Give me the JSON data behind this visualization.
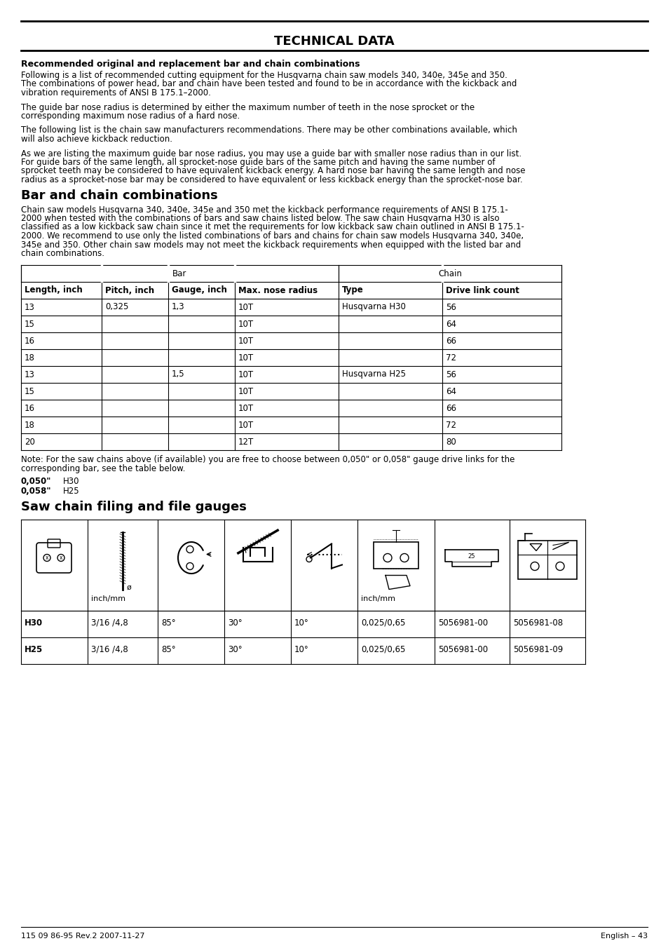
{
  "title": "TECHNICAL DATA",
  "section1_heading": "Recommended original and replacement bar and chain combinations",
  "section1_para1": "Following is a list of recommended cutting equipment for the Husqvarna chain saw models 340, 340e, 345e and 350.\nThe combinations of power head, bar and chain have been tested and found to be in accordance with the kickback and\nvibration requirements of ANSI B 175.1–2000.",
  "section1_para2": "The guide bar nose radius is determined by either the maximum number of teeth in the nose sprocket or the\ncorresponding maximum nose radius of a hard nose.",
  "section1_para3": "The following list is the chain saw manufacturers recommendations. There may be other combinations available, which\nwill also achieve kickback reduction.",
  "section1_para4": "As we are listing the maximum guide bar nose radius, you may use a guide bar with smaller nose radius than in our list.\nFor guide bars of the same length, all sprocket-nose guide bars of the same pitch and having the same number of\nsprocket teeth may be considered to have equivalent kickback energy. A hard nose bar having the same length and nose\nradius as a sprocket-nose bar may be considered to have equivalent or less kickback energy than the sprocket-nose bar.",
  "section2_heading": "Bar and chain combinations",
  "section2_paragraph": "Chain saw models Husqvarna 340, 340e, 345e and 350 met the kickback performance requirements of ANSI B 175.1-\n2000 when tested with the combinations of bars and saw chains listed below. The saw chain Husqvarna H30 is also\nclassified as a low kickback saw chain since it met the requirements for low kickback saw chain outlined in ANSI B 175.1-\n2000. We recommend to use only the listed combinations of bars and chains for chain saw models Husqvarna 340, 340e,\n345e and 350. Other chain saw models may not meet the kickback requirements when equipped with the listed bar and\nchain combinations.",
  "table1_header_row2": [
    "Length, inch",
    "Pitch, inch",
    "Gauge, inch",
    "Max. nose radius",
    "Type",
    "Drive link count"
  ],
  "table1_data": [
    [
      "13",
      "0,325",
      "1,3",
      "10T",
      "Husqvarna H30",
      "56"
    ],
    [
      "15",
      "",
      "",
      "10T",
      "",
      "64"
    ],
    [
      "16",
      "",
      "",
      "10T",
      "",
      "66"
    ],
    [
      "18",
      "",
      "",
      "10T",
      "",
      "72"
    ],
    [
      "13",
      "",
      "1,5",
      "10T",
      "Husqvarna H25",
      "56"
    ],
    [
      "15",
      "",
      "",
      "10T",
      "",
      "64"
    ],
    [
      "16",
      "",
      "",
      "10T",
      "",
      "66"
    ],
    [
      "18",
      "",
      "",
      "10T",
      "",
      "72"
    ],
    [
      "20",
      "",
      "",
      "12T",
      "",
      "80"
    ]
  ],
  "note_text": "Note: For the saw chains above (if available) you are free to choose between 0,050\" or 0,058\" gauge drive links for the\ncorresponding bar, see the table below.",
  "gauge_050": "0,050\"",
  "gauge_050_val": "H30",
  "gauge_058": "0,058\"",
  "gauge_058_val": "H25",
  "section3_heading": "Saw chain filing and file gauges",
  "table2_data": [
    [
      "H30",
      "3/16 /4,8",
      "85°",
      "30°",
      "10°",
      "0,025/0,65",
      "5056981-00",
      "5056981-08"
    ],
    [
      "H25",
      "3/16 /4,8",
      "85°",
      "30°",
      "10°",
      "0,025/0,65",
      "5056981-00",
      "5056981-09"
    ]
  ],
  "inchmm": "inch/mm",
  "footer_left": "115 09 86-95 Rev.2 2007-11-27",
  "footer_right": "English – 43"
}
